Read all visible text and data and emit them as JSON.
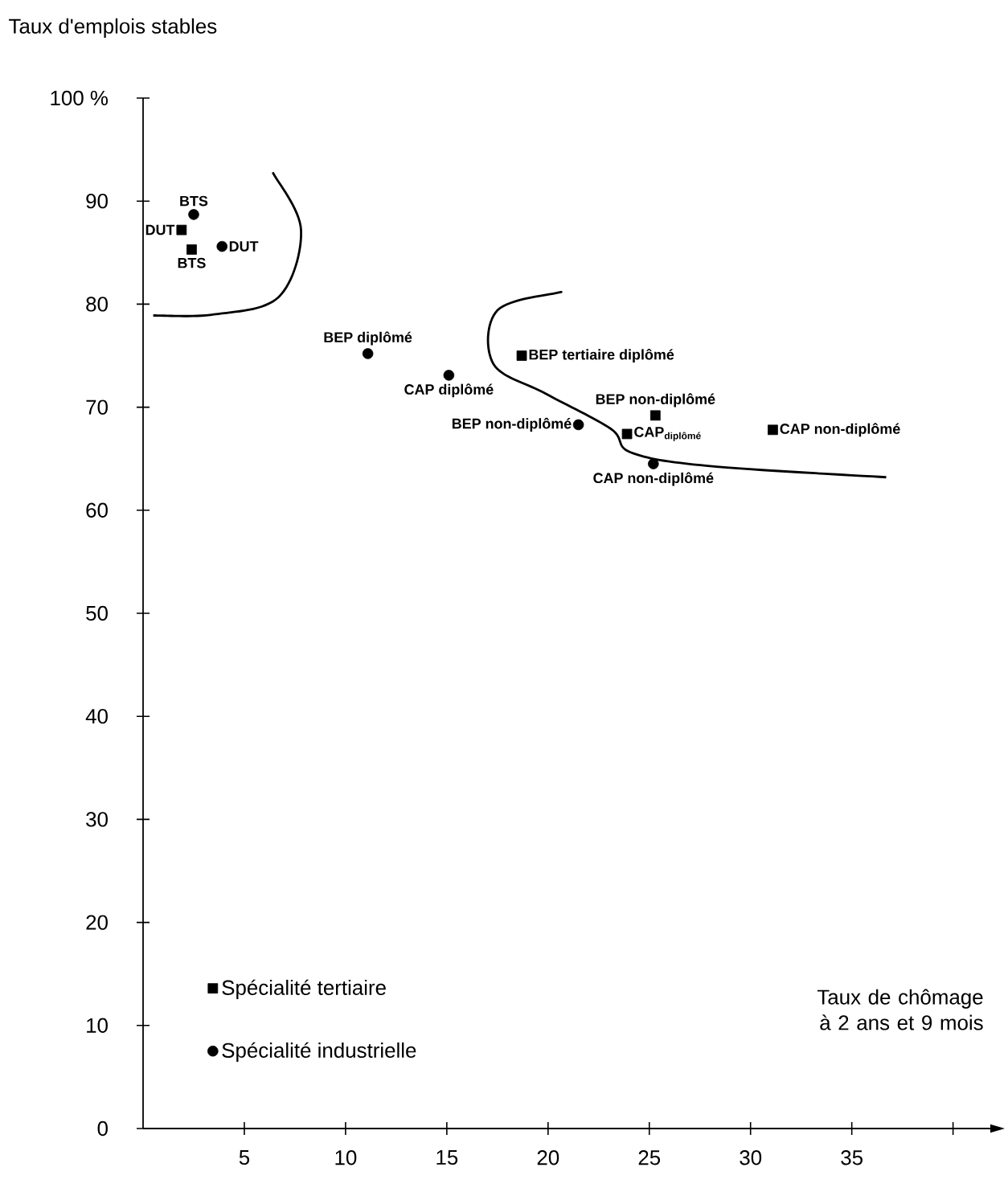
{
  "chart_data": {
    "type": "scatter",
    "ylabel": "Taux d'emplois stables",
    "xlabel": "Taux de chômage à 2 ans et 9 mois",
    "xlim": [
      0,
      42
    ],
    "xticks": [
      5,
      10,
      15,
      20,
      25,
      30,
      35,
      {
        "value": 40,
        "label": null
      }
    ],
    "ylim": [
      0,
      100
    ],
    "yticks": [
      0,
      10,
      20,
      30,
      40,
      50,
      60,
      70,
      80,
      90,
      {
        "value": 100,
        "label": "100 %"
      }
    ],
    "grid": false,
    "legend": "bottom left",
    "series": [
      {
        "name": "Spécialité tertiaire",
        "color": "#000000",
        "marker": "square",
        "x": [
          1.9,
          2.4,
          18.7,
          25.3,
          23.9,
          31.1
        ],
        "values": [
          87.2,
          85.3,
          75.0,
          69.2,
          67.4,
          67.8
        ],
        "value_labels": [
          "DUT",
          "BTS",
          "BEP tertiaire diplômé",
          "BEP non-diplômé",
          "CAP$_{diplômé}$",
          "CAP non-diplômé"
        ]
      },
      {
        "name": "Spécialité industrielle",
        "color": "#000000",
        "marker": "circle",
        "x": [
          2.5,
          3.9,
          11.1,
          15.1,
          21.5,
          25.2
        ],
        "values": [
          88.7,
          85.6,
          75.2,
          73.1,
          68.3,
          64.5
        ],
        "value_labels": [
          "BTS",
          "DUT",
          "BEP diplômé",
          "CAP diplômé",
          "BEP non-diplômé",
          "CAP non-diplômé"
        ]
      }
    ]
  }
}
